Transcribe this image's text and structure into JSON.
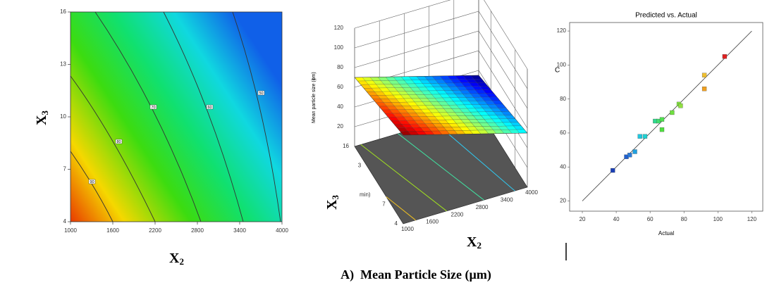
{
  "chart_data": [
    {
      "type": "contour",
      "x_label": "X",
      "x_label_sub": "2",
      "y_label": "X",
      "y_label_sub": "3",
      "xlim": [
        1000,
        4000
      ],
      "ylim": [
        4,
        16
      ],
      "xticks": [
        1000,
        1600,
        2200,
        2800,
        3400,
        4000
      ],
      "yticks": [
        4,
        7,
        10,
        13,
        16
      ],
      "levels": [
        90,
        80,
        70,
        60,
        50
      ]
    },
    {
      "type": "surface3d",
      "z_label": "Mean particle size (ɸm)",
      "x_label": "X",
      "x_label_sub": "2",
      "y_label": "X",
      "y_label_sub": "3",
      "xlim": [
        1000,
        4000
      ],
      "ylim": [
        4,
        16
      ],
      "zlim": [
        0,
        120
      ],
      "xticks": [
        1000,
        1600,
        2200,
        2800,
        3400,
        4000
      ],
      "yticks": [
        4,
        7,
        {
          "value": 13,
          "label": "3"
        },
        16
      ],
      "zticks": [
        20,
        40,
        60,
        80,
        100,
        120
      ],
      "annotation": "min)",
      "surface": {
        "x": [
          1000,
          4000
        ],
        "y": [
          4,
          16
        ],
        "z": [
          [
            90,
            70
          ],
          [
            55,
            35
          ]
        ]
      }
    },
    {
      "type": "scatter",
      "title": "Predicted vs. Actual",
      "x_label": "Actual",
      "y_label": "C",
      "xlim": [
        12.5,
        126.5
      ],
      "ylim": [
        14,
        125
      ],
      "xticks": [
        20,
        40,
        60,
        80,
        100,
        120
      ],
      "yticks": [
        20,
        40,
        60,
        80,
        100,
        120
      ],
      "x": [
        38,
        46,
        48,
        51,
        54,
        57,
        63,
        65,
        67,
        67,
        73,
        77,
        78,
        92,
        92,
        104
      ],
      "values": [
        38,
        46,
        47,
        49,
        58,
        58,
        67,
        67,
        68,
        62,
        72,
        77,
        76,
        94,
        86,
        105
      ],
      "colors": [
        "#1a3fb5",
        "#2060d0",
        "#2a7ad8",
        "#20a0e0",
        "#20c8e0",
        "#20d0d0",
        "#30d890",
        "#40e070",
        "#50e050",
        "#50e040",
        "#70e040",
        "#80e040",
        "#90e040",
        "#f0c030",
        "#f0a020",
        "#e02020"
      ],
      "fit_line": {
        "x": [
          20,
          120
        ],
        "y": [
          20,
          120
        ]
      }
    }
  ],
  "caption": "A)  Mean Particle Size (µm)"
}
